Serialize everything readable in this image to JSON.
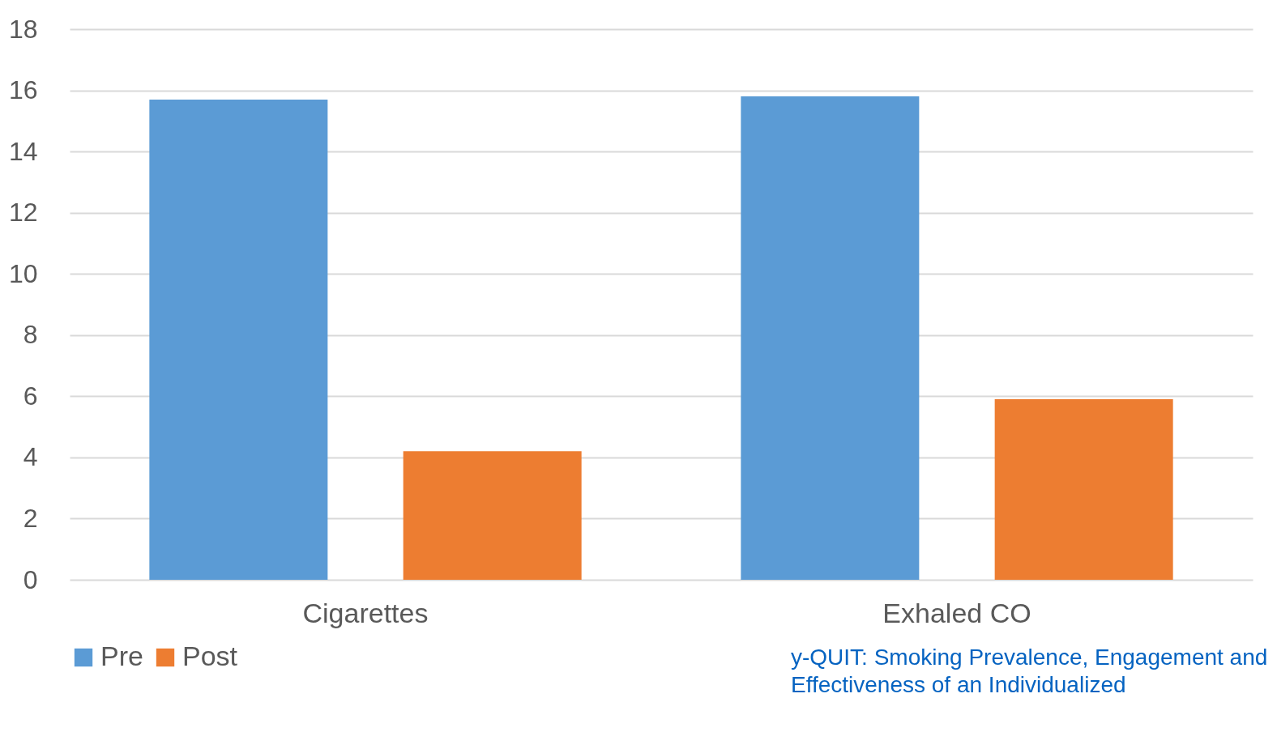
{
  "chart_data": {
    "type": "bar",
    "categories": [
      "Cigarettes",
      "Exhaled CO"
    ],
    "series": [
      {
        "name": "Pre",
        "color": "#5b9bd5",
        "values": [
          15.7,
          15.8
        ]
      },
      {
        "name": "Post",
        "color": "#ed7d31",
        "values": [
          4.2,
          5.9
        ]
      }
    ],
    "ylim": [
      0,
      18
    ],
    "yticks": [
      0,
      2,
      4,
      6,
      8,
      10,
      12,
      14,
      16,
      18
    ],
    "grid": "y",
    "legend": "bottom",
    "annotations": [
      "y-QUIT: Smoking Prevalence, Engagement and",
      "Effectiveness of an Individualized"
    ]
  }
}
